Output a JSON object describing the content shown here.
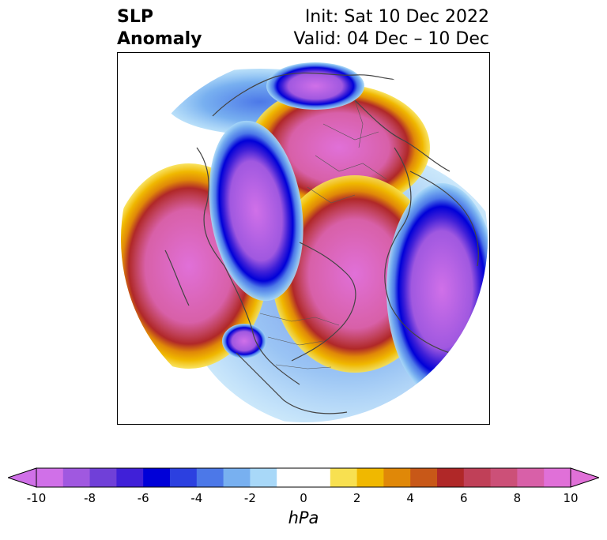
{
  "title": {
    "left_line1": "SLP",
    "left_line2": "Anomaly",
    "right_line1": "Init: Sat 10 Dec 2022",
    "right_line2": "Valid: 04 Dec – 10 Dec"
  },
  "colorbar": {
    "units": "hPa",
    "ticks": [
      "-10",
      "-8",
      "-6",
      "-4",
      "-2",
      "0",
      "2",
      "4",
      "6",
      "8",
      "10"
    ],
    "colors": [
      "#d070e8",
      "#a058e0",
      "#7040d8",
      "#4020d8",
      "#0000d8",
      "#2c40e0",
      "#4c78e8",
      "#78b0f0",
      "#a8d8f8",
      "#ffffff",
      "#ffffff",
      "#f8e050",
      "#f0b800",
      "#e08808",
      "#c85818",
      "#b02828",
      "#c04058",
      "#cc5078",
      "#d860a8",
      "#e070d8"
    ],
    "min": -10,
    "max": 10
  },
  "map": {
    "projection": "north-polar-stereographic",
    "field": "sea level pressure anomaly"
  }
}
